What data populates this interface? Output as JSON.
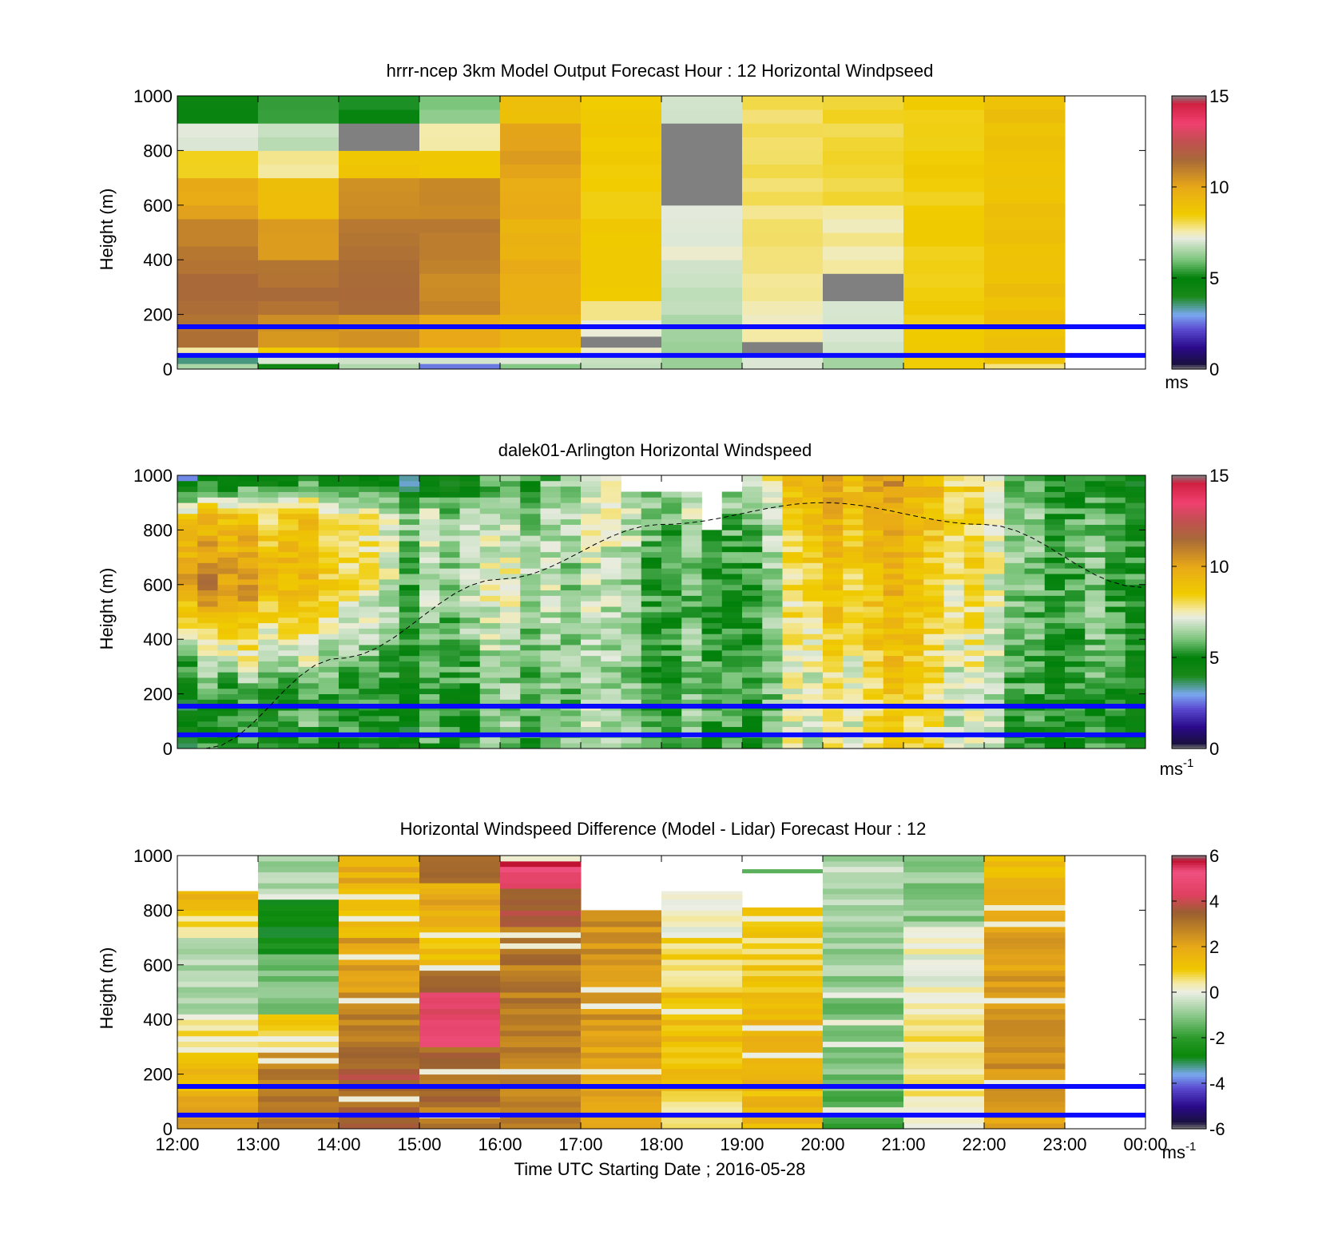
{
  "figure": {
    "xlabel": "Time UTC  Starting Date ; 2016-05-28",
    "x_tick_labels": [
      "12:00",
      "13:00",
      "14:00",
      "15:00",
      "16:00",
      "17:00",
      "18:00",
      "19:00",
      "20:00",
      "21:00",
      "22:00",
      "23:00",
      "00:00"
    ],
    "blue_reference_lines_m": [
      155,
      50
    ],
    "reference_line_color": "#0a0aff"
  },
  "speed_colormap": [
    {
      "v": 0.0,
      "c": "#808080"
    },
    {
      "v": 0.3,
      "c": "#1a1040"
    },
    {
      "v": 1.2,
      "c": "#2a0a8a"
    },
    {
      "v": 2.2,
      "c": "#5a4ad0"
    },
    {
      "v": 3.0,
      "c": "#7aa8f0"
    },
    {
      "v": 4.0,
      "c": "#1a8a1a"
    },
    {
      "v": 5.0,
      "c": "#00800a"
    },
    {
      "v": 6.0,
      "c": "#7ac47a"
    },
    {
      "v": 7.2,
      "c": "#e8ece0"
    },
    {
      "v": 7.6,
      "c": "#f4eaa8"
    },
    {
      "v": 8.5,
      "c": "#f0cc00"
    },
    {
      "v": 10.0,
      "c": "#e8a818"
    },
    {
      "v": 11.5,
      "c": "#a86a38"
    },
    {
      "v": 12.5,
      "c": "#c05050"
    },
    {
      "v": 13.5,
      "c": "#f04070"
    },
    {
      "v": 14.6,
      "c": "#d02040"
    },
    {
      "v": 15.0,
      "c": "#808080"
    }
  ],
  "diff_colormap": [
    {
      "v": -6.0,
      "c": "#808080"
    },
    {
      "v": -5.7,
      "c": "#1a1040"
    },
    {
      "v": -5.0,
      "c": "#2a0a8a"
    },
    {
      "v": -4.2,
      "c": "#5a4ad0"
    },
    {
      "v": -3.6,
      "c": "#7aa8f0"
    },
    {
      "v": -2.8,
      "c": "#0a880a"
    },
    {
      "v": -2.0,
      "c": "#2a9a2a"
    },
    {
      "v": -1.0,
      "c": "#8cc88c"
    },
    {
      "v": 0.0,
      "c": "#eceee4"
    },
    {
      "v": 0.4,
      "c": "#f4eaa8"
    },
    {
      "v": 1.0,
      "c": "#f0c800"
    },
    {
      "v": 2.0,
      "c": "#e8a818"
    },
    {
      "v": 3.5,
      "c": "#9a6030"
    },
    {
      "v": 4.3,
      "c": "#e04060"
    },
    {
      "v": 5.3,
      "c": "#f05080"
    },
    {
      "v": 5.8,
      "c": "#c01030"
    },
    {
      "v": 6.0,
      "c": "#808080"
    }
  ],
  "chart_data": [
    {
      "type": "heatmap",
      "title": "hrrr-ncep 3km Model Output   Forecast Hour : 12 Horizontal Windpseed",
      "ylabel": "Height (m)",
      "xlim": [
        12,
        24
      ],
      "ylim": [
        0,
        1000
      ],
      "y_ticks": [
        0,
        200,
        400,
        600,
        800,
        1000
      ],
      "colorbar": {
        "range": [
          0,
          15
        ],
        "ticks": [
          0,
          5,
          10,
          15
        ],
        "unit": "ms",
        "unit_exp": ""
      },
      "columns": [
        {
          "x0": 12,
          "x1": 13,
          "cells": [
            [
              0,
              20,
              6.5
            ],
            [
              20,
              50,
              3.6
            ],
            [
              50,
              80,
              7.6
            ],
            [
              80,
              200,
              11.2
            ],
            [
              200,
              400,
              11.4
            ],
            [
              400,
              550,
              11.0
            ],
            [
              550,
              700,
              10.0
            ],
            [
              700,
              800,
              8.5
            ],
            [
              800,
              900,
              7.0
            ],
            [
              900,
              1000,
              4.5
            ]
          ]
        },
        {
          "x0": 13,
          "x1": 14,
          "cells": [
            [
              0,
              20,
              4.5
            ],
            [
              20,
              50,
              7.0
            ],
            [
              50,
              80,
              8.5
            ],
            [
              80,
              200,
              10.5
            ],
            [
              200,
              400,
              11.4
            ],
            [
              400,
              550,
              10.2
            ],
            [
              550,
              700,
              9.0
            ],
            [
              700,
              800,
              7.8
            ],
            [
              800,
              900,
              6.8
            ],
            [
              900,
              1000,
              5.5
            ]
          ]
        },
        {
          "x0": 14,
          "x1": 15,
          "cells": [
            [
              0,
              20,
              6.5
            ],
            [
              20,
              50,
              7.0
            ],
            [
              50,
              80,
              9.0
            ],
            [
              80,
              200,
              10.5
            ],
            [
              200,
              400,
              11.5
            ],
            [
              400,
              550,
              11.2
            ],
            [
              550,
              700,
              10.6
            ],
            [
              700,
              800,
              8.8
            ],
            [
              800,
              900,
              15.0
            ],
            [
              900,
              1000,
              5.2
            ]
          ]
        },
        {
          "x0": 15,
          "x1": 16,
          "cells": [
            [
              0,
              20,
              2.6
            ],
            [
              20,
              50,
              7.0
            ],
            [
              50,
              80,
              9.0
            ],
            [
              80,
              200,
              10.0
            ],
            [
              200,
              400,
              10.8
            ],
            [
              400,
              550,
              11.0
            ],
            [
              550,
              700,
              10.8
            ],
            [
              700,
              800,
              8.6
            ],
            [
              800,
              900,
              7.7
            ],
            [
              900,
              1000,
              6.2
            ]
          ]
        },
        {
          "x0": 16,
          "x1": 17,
          "cells": [
            [
              0,
              20,
              6.2
            ],
            [
              20,
              50,
              7.0
            ],
            [
              50,
              80,
              8.5
            ],
            [
              80,
              200,
              9.5
            ],
            [
              200,
              400,
              9.8
            ],
            [
              400,
              550,
              9.6
            ],
            [
              550,
              700,
              9.8
            ],
            [
              700,
              800,
              10.2
            ],
            [
              800,
              900,
              10.2
            ],
            [
              900,
              1000,
              9.0
            ]
          ]
        },
        {
          "x0": 17,
          "x1": 18,
          "cells": [
            [
              0,
              20,
              6.8
            ],
            [
              20,
              50,
              7.0
            ],
            [
              50,
              80,
              7.4
            ],
            [
              80,
              120,
              15.0
            ],
            [
              120,
              180,
              7.4
            ],
            [
              180,
              250,
              7.6
            ],
            [
              250,
              400,
              8.6
            ],
            [
              400,
              1000,
              8.5
            ]
          ]
        },
        {
          "x0": 18,
          "x1": 19,
          "cells": [
            [
              0,
              50,
              6.2
            ],
            [
              50,
              200,
              6.4
            ],
            [
              200,
              400,
              6.8
            ],
            [
              400,
              600,
              7.2
            ],
            [
              600,
              900,
              15.0
            ],
            [
              900,
              1000,
              7.1
            ]
          ]
        },
        {
          "x0": 19,
          "x1": 20,
          "cells": [
            [
              0,
              50,
              7.0
            ],
            [
              50,
              100,
              15.0
            ],
            [
              100,
              250,
              7.5
            ],
            [
              250,
              600,
              7.8
            ],
            [
              600,
              1000,
              8.0
            ]
          ]
        },
        {
          "x0": 20,
          "x1": 21,
          "cells": [
            [
              0,
              50,
              6.5
            ],
            [
              50,
              250,
              7.0
            ],
            [
              250,
              350,
              15.0
            ],
            [
              350,
              450,
              7.5
            ],
            [
              450,
              600,
              7.6
            ],
            [
              600,
              1000,
              8.2
            ]
          ]
        },
        {
          "x0": 21,
          "x1": 22,
          "cells": [
            [
              0,
              1000,
              8.5
            ]
          ]
        },
        {
          "x0": 22,
          "x1": 23,
          "cells": [
            [
              0,
              20,
              7.8
            ],
            [
              20,
              1000,
              9.0
            ]
          ]
        }
      ]
    },
    {
      "type": "heatmap",
      "title": "dalek01-Arlington  Horizontal Windspeed",
      "ylabel": "Height (m)",
      "xlim": [
        12,
        24
      ],
      "ylim": [
        0,
        1000
      ],
      "y_ticks": [
        0,
        200,
        400,
        600,
        800,
        1000
      ],
      "x_end_data": 23.9,
      "column_width_h": 0.25,
      "row_height_m": 20,
      "colorbar": {
        "range": [
          0,
          15
        ],
        "ticks": [
          0,
          5,
          10,
          15
        ],
        "unit": "ms",
        "unit_exp": "-1"
      },
      "profiles_by_hour": [
        {
          "hour": 12,
          "low": 4.5,
          "mid": 10.5,
          "high": 9.0,
          "top": 3.5
        },
        {
          "hour": 13,
          "low": 5.5,
          "mid": 10.2,
          "high": 8.8,
          "top": 4.5
        },
        {
          "hour": 14,
          "low": 5.0,
          "mid": 8.2,
          "high": 8.0,
          "top": 4.2
        },
        {
          "hour": 15,
          "low": 5.0,
          "mid": 6.0,
          "high": 6.5,
          "top": 3.0
        },
        {
          "hour": 16,
          "low": 5.5,
          "mid": 6.8,
          "high": 6.2,
          "top": 5.0
        },
        {
          "hour": 17,
          "low": 6.0,
          "mid": 6.2,
          "high": 6.5,
          "top": 6.0
        },
        {
          "hour": 18,
          "low": 5.8,
          "mid": 5.8,
          "high": 6.5,
          "top": 7.0
        },
        {
          "hour": 19,
          "low": 6.0,
          "mid": 5.5,
          "high": 6.2,
          "top": 7.5
        },
        {
          "hour": 20,
          "low": 7.0,
          "mid": 8.6,
          "high": 9.0,
          "top": 9.5
        },
        {
          "hour": 21,
          "low": 8.5,
          "mid": 9.2,
          "high": 9.6,
          "top": 10.0
        },
        {
          "hour": 22,
          "low": 6.5,
          "mid": 7.2,
          "high": 7.5,
          "top": 7.5
        },
        {
          "hour": 23,
          "low": 5.5,
          "mid": 6.0,
          "high": 5.8,
          "top": 5.2
        },
        {
          "hour": 24,
          "low": 5.2,
          "mid": 5.8,
          "high": 5.5,
          "top": 4.8
        }
      ],
      "gaps_by_hour": [
        {
          "h0": 17.5,
          "h1": 19.0,
          "y0": 940,
          "y1": 1000
        },
        {
          "h0": 18.4,
          "h1": 18.7,
          "y0": 800,
          "y1": 940
        }
      ],
      "boundary_layer_curve": [
        [
          12.35,
          0
        ],
        [
          14,
          330
        ],
        [
          16,
          620
        ],
        [
          18,
          820
        ],
        [
          20,
          900
        ],
        [
          22,
          820
        ],
        [
          23.95,
          590
        ]
      ]
    },
    {
      "type": "heatmap",
      "title": "Horizontal Windspeed Difference (Model - Lidar) Forecast Hour : 12",
      "ylabel": "Height (m)",
      "xlim": [
        12,
        24
      ],
      "ylim": [
        0,
        1000
      ],
      "y_ticks": [
        0,
        200,
        400,
        600,
        800,
        1000
      ],
      "colorbar": {
        "range": [
          -6,
          6
        ],
        "ticks": [
          -6,
          -4,
          -2,
          0,
          2,
          4,
          6
        ],
        "unit": "ms",
        "unit_exp": "-1"
      },
      "row_height_m": 20,
      "columns": [
        {
          "x0": 12,
          "x1": 13,
          "top_m": 870,
          "layers": [
            [
              0,
              150,
              2.0
            ],
            [
              150,
              300,
              1.3
            ],
            [
              300,
              420,
              0.5
            ],
            [
              420,
              700,
              -0.7
            ],
            [
              700,
              800,
              0.8
            ],
            [
              800,
              870,
              1.6
            ]
          ]
        },
        {
          "x0": 13,
          "x1": 14,
          "top_m": 1000,
          "layers": [
            [
              0,
              100,
              2.6
            ],
            [
              100,
              300,
              2.9
            ],
            [
              300,
              430,
              0.9
            ],
            [
              430,
              650,
              -1.2
            ],
            [
              650,
              850,
              -2.6
            ],
            [
              850,
              1000,
              -0.7
            ]
          ]
        },
        {
          "x0": 14,
          "x1": 15,
          "top_m": 1000,
          "layers": [
            [
              0,
              100,
              3.2
            ],
            [
              100,
              300,
              3.5
            ],
            [
              300,
              500,
              2.9
            ],
            [
              500,
              700,
              2.2
            ],
            [
              700,
              900,
              1.2
            ],
            [
              900,
              1000,
              1.8
            ]
          ]
        },
        {
          "x0": 15,
          "x1": 16,
          "top_m": 1000,
          "layers": [
            [
              0,
              100,
              3.0
            ],
            [
              100,
              300,
              3.2
            ],
            [
              300,
              500,
              4.6
            ],
            [
              500,
              600,
              3.6
            ],
            [
              600,
              750,
              1.2
            ],
            [
              750,
              900,
              1.9
            ],
            [
              900,
              1000,
              3.4
            ]
          ]
        },
        {
          "x0": 16,
          "x1": 17,
          "top_m": 1000,
          "layers": [
            [
              0,
              300,
              2.8
            ],
            [
              300,
              600,
              2.9
            ],
            [
              600,
              750,
              3.0
            ],
            [
              750,
              880,
              3.6
            ],
            [
              880,
              960,
              4.8
            ],
            [
              960,
              1000,
              5.6
            ]
          ]
        },
        {
          "x0": 17,
          "x1": 18,
          "top_m": 800,
          "layers": [
            [
              0,
              300,
              2.1
            ],
            [
              300,
              600,
              2.4
            ],
            [
              600,
              800,
              2.5
            ]
          ]
        },
        {
          "x0": 18,
          "x1": 19,
          "top_m": 870,
          "layers": [
            [
              0,
              150,
              0.5
            ],
            [
              150,
              500,
              1.3
            ],
            [
              500,
              700,
              0.8
            ],
            [
              700,
              870,
              0.2
            ]
          ]
        },
        {
          "x0": 19,
          "x1": 20,
          "top_m": 810,
          "layers": [
            [
              0,
              150,
              1.4
            ],
            [
              150,
              500,
              1.6
            ],
            [
              500,
              810,
              0.9
            ]
          ],
          "extra_band": {
            "y0": 935,
            "y1": 950,
            "v": -1.5
          }
        },
        {
          "x0": 20,
          "x1": 21,
          "top_m": 1000,
          "layers": [
            [
              0,
              150,
              -1.6
            ],
            [
              150,
              500,
              -1.2
            ],
            [
              500,
              800,
              -0.9
            ],
            [
              800,
              1000,
              -0.6
            ]
          ]
        },
        {
          "x0": 21,
          "x1": 22,
          "top_m": 1000,
          "layers": [
            [
              0,
              150,
              0.4
            ],
            [
              150,
              450,
              0.7
            ],
            [
              450,
              700,
              0.1
            ],
            [
              700,
              1000,
              -1.0
            ]
          ]
        },
        {
          "x0": 22,
          "x1": 23,
          "top_m": 1000,
          "layers": [
            [
              0,
              150,
              2.1
            ],
            [
              150,
              500,
              2.4
            ],
            [
              500,
              800,
              2.2
            ],
            [
              800,
              1000,
              1.5
            ]
          ]
        }
      ]
    }
  ]
}
